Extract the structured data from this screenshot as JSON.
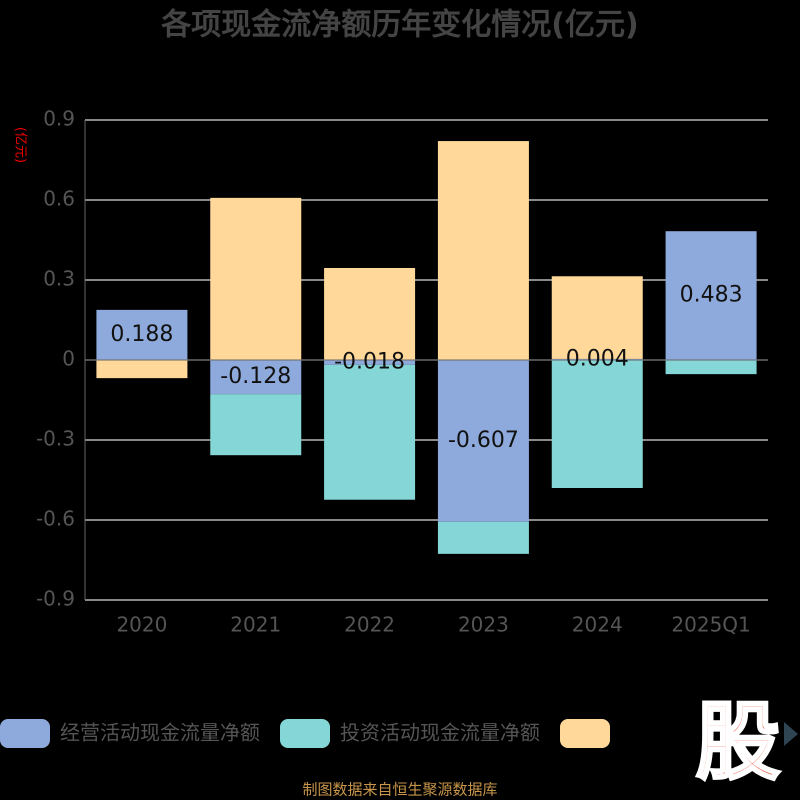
{
  "chart_data": {
    "type": "bar",
    "stacked": true,
    "title": "各项现金流净额历年变化情况(亿元)",
    "y_label": "(亿元)",
    "categories": [
      "2020",
      "2021",
      "2022",
      "2023",
      "2024",
      "2025Q1"
    ],
    "series": [
      {
        "name": "经营活动现金流量净额",
        "color": "#8eaadc",
        "values": [
          0.188,
          -0.128,
          -0.018,
          -0.607,
          0.004,
          0.483
        ],
        "show_labels": true
      },
      {
        "name": "投资活动现金流量净额",
        "color": "#85d6d6",
        "values": [
          0,
          -0.229,
          -0.506,
          -0.12,
          -0.48,
          -0.053
        ]
      },
      {
        "color": "#ffd89a",
        "values": [
          -0.068,
          0.608,
          0.345,
          0.821,
          0.31,
          0
        ]
      }
    ],
    "ylim": [
      -0.9,
      0.9
    ],
    "yticks": [
      -0.9,
      -0.6,
      -0.3,
      0,
      0.3,
      0.6,
      0.9
    ],
    "grid": true,
    "watermark": "股",
    "source": "制图数据来自恒生聚源数据库"
  }
}
